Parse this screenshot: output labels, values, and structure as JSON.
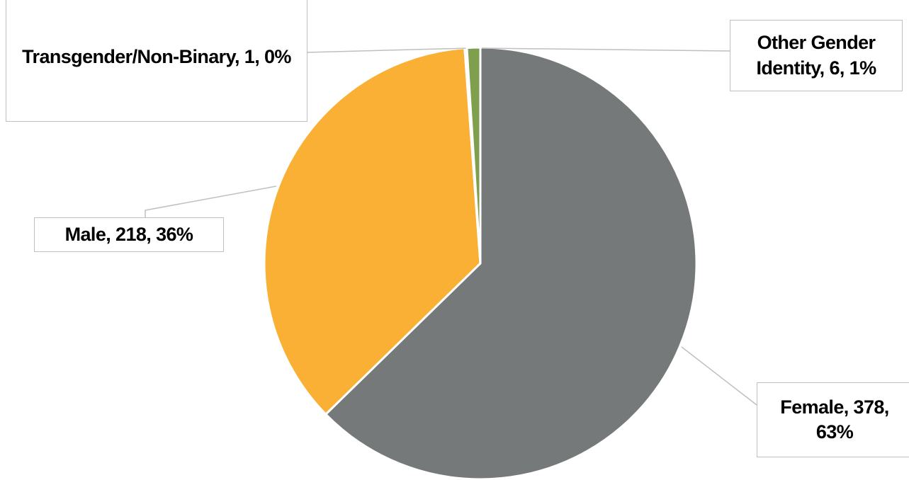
{
  "chart_data": {
    "type": "pie",
    "categories": [
      "Female",
      "Male",
      "Transgender/Non-Binary",
      "Other Gender Identity"
    ],
    "values": [
      378,
      218,
      1,
      6
    ],
    "value_labels": [
      "Female, 378, 63%",
      "Male, 218, 36%",
      "Transgender/Non-Binary, 1, 0%",
      "Other Gender Identity, 6, 1%"
    ],
    "colors": [
      "#76797a",
      "#f9b035",
      "#5b9bd5",
      "#7d9f4e"
    ]
  }
}
